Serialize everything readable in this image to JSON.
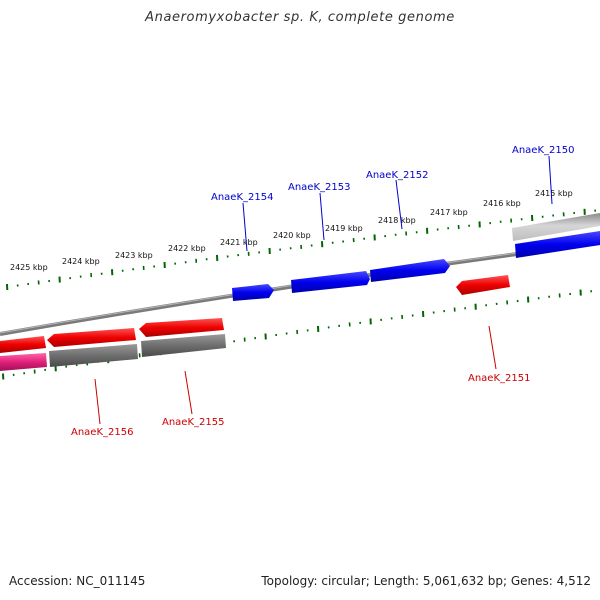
{
  "title": "Anaeromyxobacter sp. K, complete genome",
  "footer": {
    "accession": "Accession: NC_011145",
    "summary": "Topology: circular; Length: 5,061,632 bp; Genes: 4,512"
  },
  "colors": {
    "forward_gene": "#0000ee",
    "reverse_gene": "#ee0000",
    "tick": "#006600",
    "backbone": "#7a7a7a",
    "rna": "#e0207a"
  },
  "kbp_labels": [
    "2425 kbp",
    "2424 kbp",
    "2423 kbp",
    "2422 kbp",
    "2421 kbp",
    "2420 kbp",
    "2419 kbp",
    "2418 kbp",
    "2417 kbp",
    "2416 kbp",
    "2415 kbp"
  ],
  "genes": [
    {
      "id": "g2150",
      "label": "AnaeK_2150",
      "strand": "forward"
    },
    {
      "id": "g2151",
      "label": "AnaeK_2151",
      "strand": "reverse"
    },
    {
      "id": "g2152",
      "label": "AnaeK_2152",
      "strand": "forward"
    },
    {
      "id": "g2153",
      "label": "AnaeK_2153",
      "strand": "forward"
    },
    {
      "id": "g2154",
      "label": "AnaeK_2154",
      "strand": "forward"
    },
    {
      "id": "g2155",
      "label": "AnaeK_2155",
      "strand": "reverse"
    },
    {
      "id": "g2156",
      "label": "AnaeK_2156",
      "strand": "reverse"
    }
  ]
}
